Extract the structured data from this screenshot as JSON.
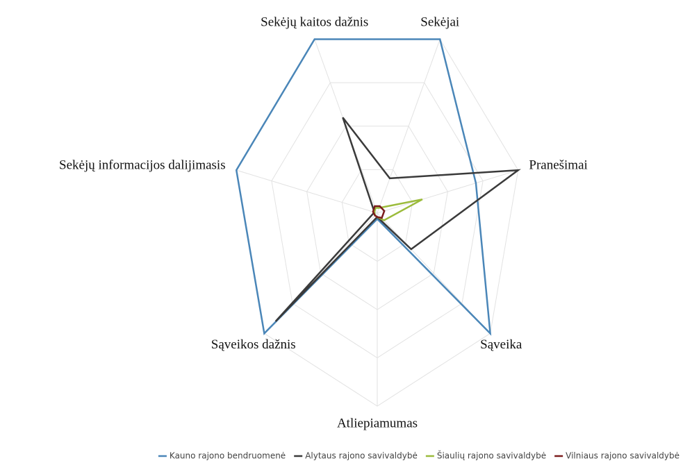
{
  "chart_data": {
    "type": "radar",
    "categories": [
      "Sekėjai",
      "Pranešimai",
      "Sąveika",
      "Atliepiamumas",
      "Sąveikos dažnis",
      "Sekėjų informacijos dalijimasis",
      "Sekėjų kaitos dažnis"
    ],
    "ylim": [
      0,
      100
    ],
    "yticks": [
      0,
      25,
      50,
      75,
      100
    ],
    "grid": true,
    "legend": "bottom",
    "series": [
      {
        "name": "Kauno rajono bendruomenė",
        "color": "#4a86b8",
        "values": [
          100,
          70,
          100,
          3,
          100,
          100,
          100
        ]
      },
      {
        "name": "Alytaus rajono savivaldybė",
        "color": "#3a3a3a",
        "values": [
          20,
          100,
          30,
          2,
          90,
          2,
          55
        ]
      },
      {
        "name": "Šiaulių rajono savivaldybė",
        "color": "#9bbb3b",
        "values": [
          3,
          32,
          6,
          2,
          2,
          2,
          3
        ]
      },
      {
        "name": "Vilniaus rajono savivaldybė",
        "color": "#7b1c1c",
        "values": [
          4,
          5,
          4,
          2,
          2,
          3,
          4
        ]
      }
    ]
  }
}
